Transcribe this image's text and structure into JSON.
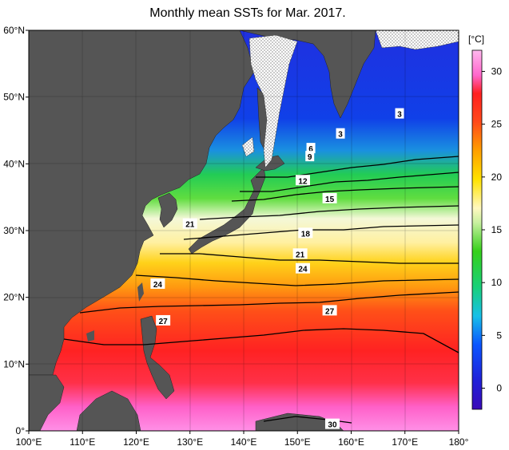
{
  "title": "Monthly mean SSTs for Mar. 2017.",
  "map": {
    "region": "Western North Pacific",
    "lon_range": [
      100,
      180
    ],
    "lat_range": [
      0,
      60
    ],
    "lon_ticks": [
      "100°E",
      "110°E",
      "120°E",
      "130°E",
      "140°E",
      "150°E",
      "160°E",
      "170°E",
      "180°"
    ],
    "lat_ticks": [
      "0°",
      "10°N",
      "20°N",
      "30°N",
      "40°N",
      "50°N",
      "60°N"
    ],
    "land_color": "#555555",
    "sea_ice_color": "#ffffff",
    "contour_labels": [
      {
        "text": "3",
        "lon": 169,
        "lat": 47.5
      },
      {
        "text": "3",
        "lon": 158,
        "lat": 44.5
      },
      {
        "text": "6",
        "lon": 152.5,
        "lat": 42.3
      },
      {
        "text": "9",
        "lon": 152.3,
        "lat": 41.1
      },
      {
        "text": "12",
        "lon": 151,
        "lat": 37.5
      },
      {
        "text": "15",
        "lon": 156,
        "lat": 34.8
      },
      {
        "text": "18",
        "lon": 151.5,
        "lat": 29.6
      },
      {
        "text": "21",
        "lon": 130,
        "lat": 31
      },
      {
        "text": "21",
        "lon": 150.5,
        "lat": 26.5
      },
      {
        "text": "24",
        "lon": 124,
        "lat": 22
      },
      {
        "text": "24",
        "lon": 151,
        "lat": 24.3
      },
      {
        "text": "27",
        "lon": 125,
        "lat": 16.5
      },
      {
        "text": "27",
        "lon": 156,
        "lat": 18
      },
      {
        "text": "30",
        "lon": 156.5,
        "lat": 1
      }
    ]
  },
  "colorbar": {
    "unit": "[°C]",
    "ticks": [
      "30",
      "25",
      "20",
      "15",
      "10",
      "5",
      "0"
    ],
    "min": -2,
    "max": 32
  }
}
